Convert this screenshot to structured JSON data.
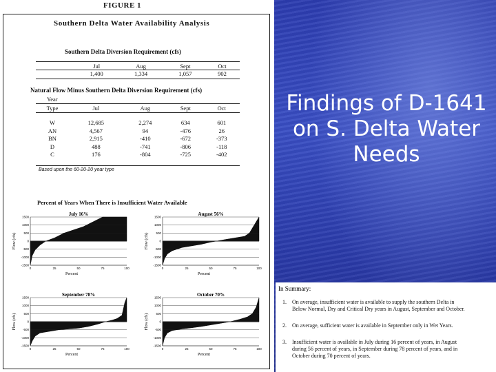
{
  "slide": {
    "title_lines": [
      "Findings of D-1641",
      "on S. Delta Water",
      "Needs"
    ]
  },
  "figure": {
    "label": "FIGURE 1",
    "title": "Southern Delta Water Availability Analysis",
    "diversion": {
      "title": "Southern Delta Diversion Requirement  (cfs)",
      "months": [
        "Jul",
        "Aug",
        "Sept",
        "Oct"
      ],
      "values": [
        "1,400",
        "1,334",
        "1,057",
        "902"
      ]
    },
    "natural_flow": {
      "title": "Natural Flow Minus Southern Delta Diversion Requirement  (cfs)",
      "year_label": "Year",
      "type_label": "Type",
      "columns": [
        "Jul",
        "Aug",
        "Sept",
        "Oct"
      ],
      "rows": [
        {
          "type": "W",
          "values": [
            "12,685",
            "2,274",
            "634",
            "601"
          ]
        },
        {
          "type": "AN",
          "values": [
            "4,567",
            "94",
            "-476",
            "26"
          ]
        },
        {
          "type": "BN",
          "values": [
            "2,915",
            "-410",
            "-672",
            "-373"
          ]
        },
        {
          "type": "D",
          "values": [
            "488",
            "-741",
            "-806",
            "-118"
          ]
        },
        {
          "type": "C",
          "values": [
            "176",
            "-804",
            "-725",
            "-402"
          ]
        }
      ],
      "note": "Based upon the 60-20-20 year type"
    },
    "charts_title": "Percent of Years When There is Insufficient Water Available",
    "charts": [
      {
        "title": "July 16%",
        "ylabel": "Flow (cfs)",
        "xlabel": "Percent",
        "yticks": [
          "1500",
          "1000",
          "500",
          "0",
          "-500",
          "-1000",
          "-1500"
        ],
        "xticks": [
          "0",
          "25",
          "50",
          "75",
          "100"
        ]
      },
      {
        "title": "August 56%",
        "ylabel": "Flow (cfs)",
        "xlabel": "Percent",
        "yticks": [
          "1500",
          "1000",
          "500",
          "0",
          "-500",
          "-1000",
          "-1500"
        ],
        "xticks": [
          "0",
          "25",
          "50",
          "75",
          "100"
        ]
      },
      {
        "title": "September 78%",
        "ylabel": "Flow (cfs)",
        "xlabel": "Percent",
        "yticks": [
          "1500",
          "1000",
          "500",
          "0",
          "-500",
          "-1000",
          "-1500"
        ],
        "xticks": [
          "0",
          "25",
          "50",
          "75",
          "100"
        ]
      },
      {
        "title": "October 70%",
        "ylabel": "Flow (cfs)",
        "xlabel": "Percent",
        "yticks": [
          "1500",
          "1000",
          "500",
          "0",
          "-500",
          "-1000",
          "-1500"
        ],
        "xticks": [
          "0",
          "25",
          "50",
          "75",
          "100"
        ]
      }
    ],
    "chart_data": [
      {
        "type": "area",
        "title": "July 16%",
        "xlabel": "Percent",
        "ylabel": "Flow (cfs)",
        "xlim": [
          0,
          100
        ],
        "ylim": [
          -1500,
          1500
        ],
        "x": [
          0,
          2,
          5,
          10,
          16,
          25,
          35,
          45,
          55,
          65,
          75,
          80,
          85,
          90,
          95,
          100
        ],
        "y": [
          -1500,
          -900,
          -550,
          -250,
          0,
          200,
          500,
          700,
          900,
          1200,
          1500,
          1500,
          1500,
          1500,
          1500,
          1500
        ]
      },
      {
        "type": "area",
        "title": "August 56%",
        "xlabel": "Percent",
        "ylabel": "Flow (cfs)",
        "xlim": [
          0,
          100
        ],
        "ylim": [
          -1500,
          1500
        ],
        "x": [
          0,
          2,
          5,
          10,
          20,
          30,
          40,
          50,
          56,
          65,
          75,
          85,
          90,
          95,
          100
        ],
        "y": [
          -1500,
          -1100,
          -800,
          -600,
          -400,
          -300,
          -200,
          -60,
          0,
          100,
          200,
          300,
          500,
          1000,
          1500
        ]
      },
      {
        "type": "area",
        "title": "September 78%",
        "xlabel": "Percent",
        "ylabel": "Flow (cfs)",
        "xlim": [
          0,
          100
        ],
        "ylim": [
          -1500,
          1500
        ],
        "x": [
          0,
          2,
          5,
          10,
          20,
          30,
          40,
          50,
          60,
          70,
          78,
          85,
          90,
          95,
          98,
          100
        ],
        "y": [
          -1500,
          -1200,
          -900,
          -700,
          -600,
          -500,
          -450,
          -400,
          -300,
          -150,
          0,
          100,
          200,
          400,
          1200,
          1500
        ]
      },
      {
        "type": "area",
        "title": "October 70%",
        "xlabel": "Percent",
        "ylabel": "Flow (cfs)",
        "xlim": [
          0,
          100
        ],
        "ylim": [
          -1500,
          1500
        ],
        "x": [
          0,
          2,
          5,
          10,
          20,
          30,
          40,
          50,
          60,
          70,
          80,
          88,
          93,
          97,
          100
        ],
        "y": [
          -1500,
          -1000,
          -700,
          -550,
          -450,
          -380,
          -300,
          -200,
          -100,
          0,
          150,
          300,
          500,
          900,
          1500
        ]
      }
    ]
  },
  "summary": {
    "heading": "In Summary:",
    "items": [
      {
        "num": "1.",
        "lines": [
          "On average, insufficient water is available to supply the southern Delta in",
          "Below Normal, Dry and Critical Dry years in August, September and October."
        ]
      },
      {
        "num": "2.",
        "lines": [
          "On average, sufficient water is available in September only in Wet Years."
        ]
      },
      {
        "num": "3.",
        "lines": [
          "Insufficient water is available in July during 16 percent of years, in August",
          "during 56 percent of years, in September during 78 percent of years, and in",
          "October during 70 percent of years."
        ]
      }
    ]
  }
}
